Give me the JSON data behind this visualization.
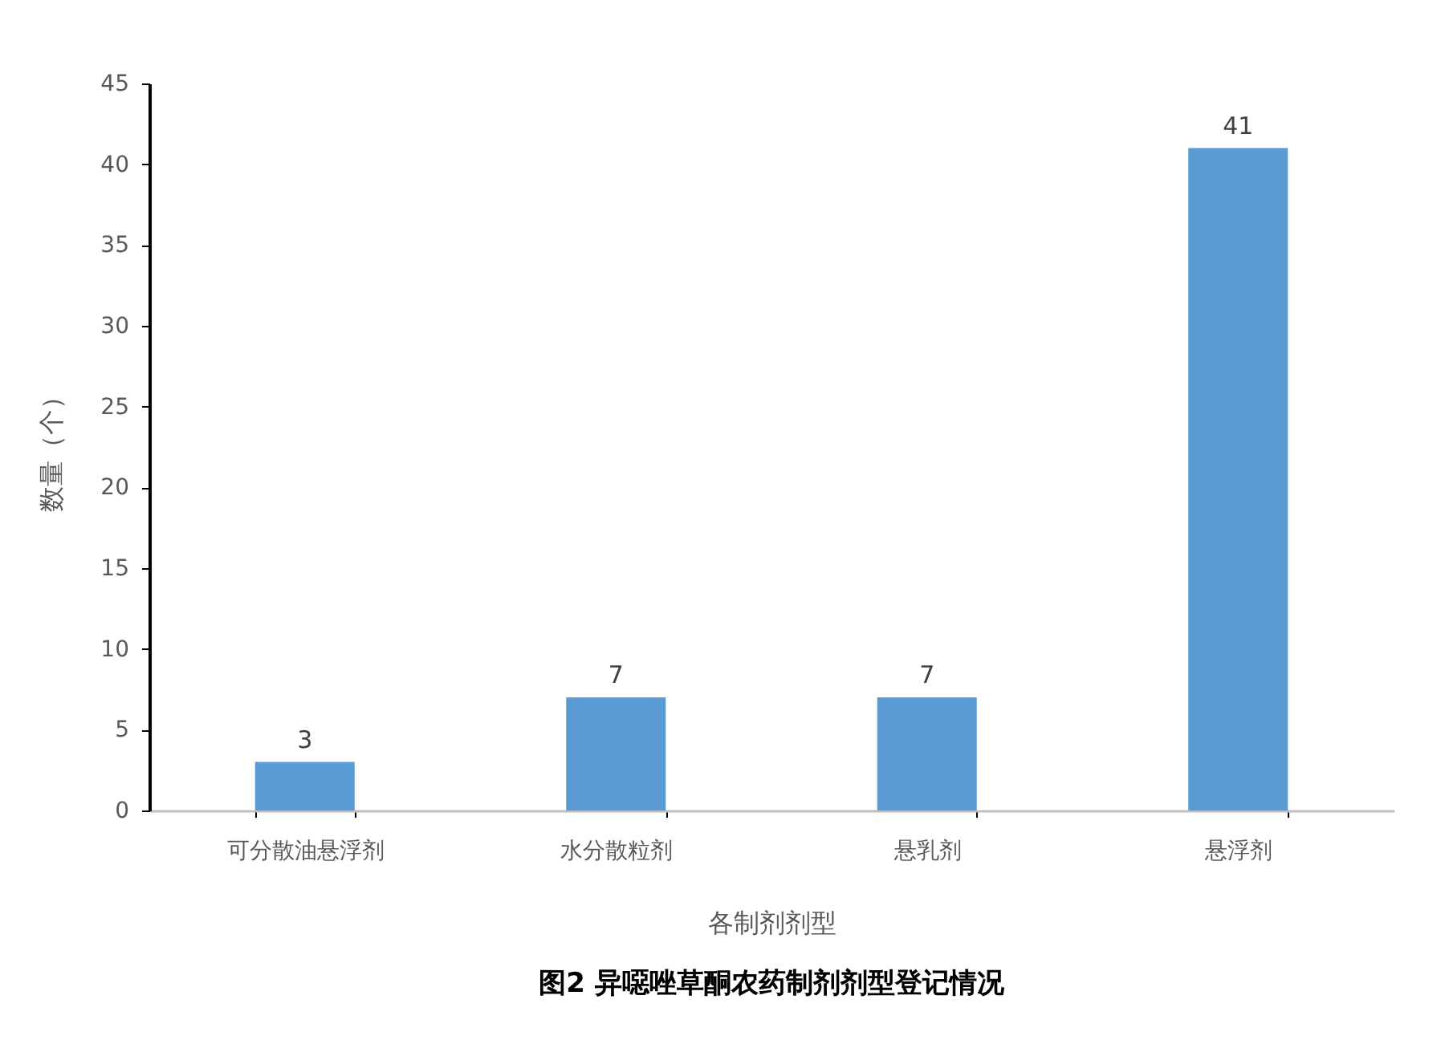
{
  "chart_data": {
    "type": "bar",
    "title": "图2 异噁唑草酮农药制剂剂型登记情况",
    "xlabel": "各制剂剂型",
    "ylabel": "数量（个）",
    "categories": [
      "可分散油悬浮剂",
      "水分散粒剂",
      "悬乳剂",
      "悬浮剂"
    ],
    "values": [
      3,
      7,
      7,
      41
    ],
    "color": "#5b9bd5",
    "ylim": [
      0,
      45
    ],
    "yticks": [
      0,
      5,
      10,
      15,
      20,
      25,
      30,
      35,
      40,
      45
    ],
    "grid": false,
    "data_labels": true
  }
}
